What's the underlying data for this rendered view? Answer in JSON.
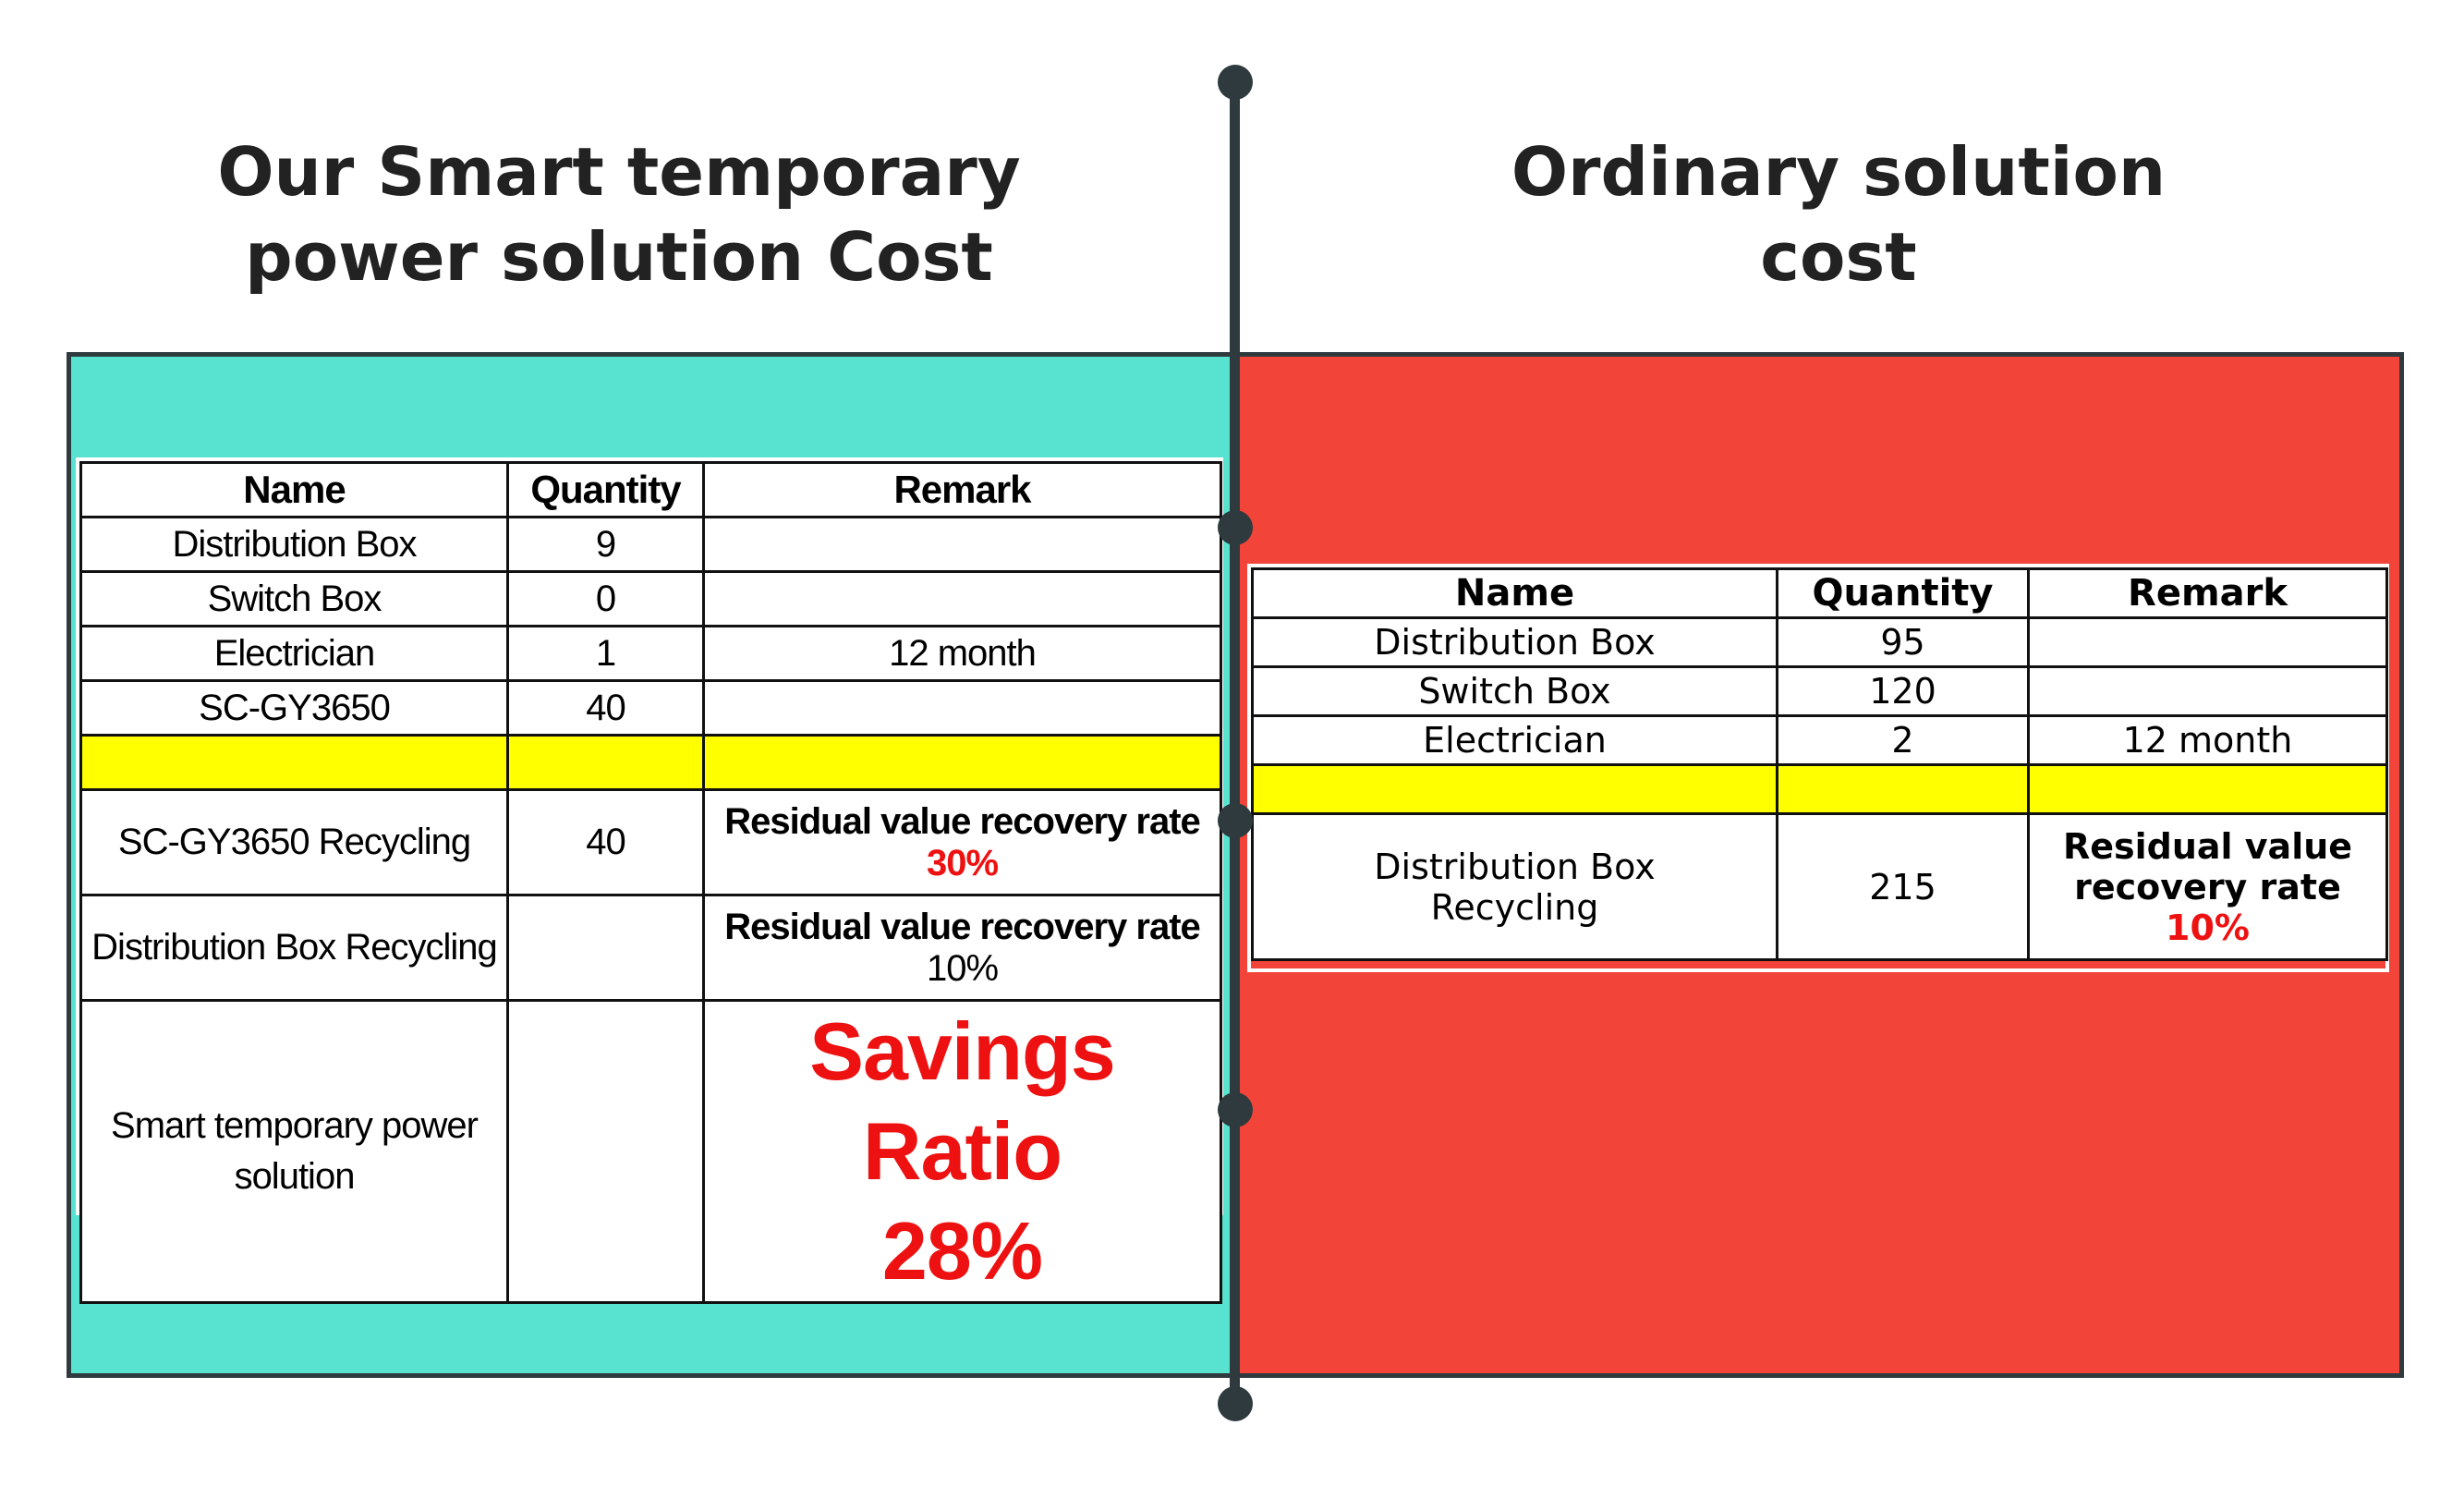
{
  "left": {
    "heading_line1": "Our Smart temporary",
    "heading_line2": "power solution Cost",
    "panel_color": "#57e3d0",
    "table": {
      "headers": [
        "Name",
        "Quantity",
        "Remark"
      ],
      "rows": [
        {
          "name": "Distribution Box",
          "quantity": "9",
          "remark": ""
        },
        {
          "name": "Switch Box",
          "quantity": "0",
          "remark": ""
        },
        {
          "name": "Electrician",
          "quantity": "1",
          "remark": "12 month"
        },
        {
          "name": "SC-GY3650",
          "quantity": "40",
          "remark": ""
        }
      ],
      "recycling_rows": [
        {
          "name": "SC-GY3650 Recycling",
          "quantity": "40",
          "remark_label": "Residual value recovery rate",
          "remark_value": "30%"
        },
        {
          "name": "Distribution Box Recycling",
          "quantity": "",
          "remark_label": "Residual value recovery rate",
          "remark_value": "10%"
        }
      ],
      "summary": {
        "name_line1": "Smart temporary power",
        "name_line2": "solution",
        "quantity": "",
        "savings_label": "Savings Ratio",
        "savings_value": "28%"
      }
    }
  },
  "right": {
    "heading_line1": "Ordinary solution",
    "heading_line2": "cost",
    "panel_color": "#f24438",
    "table": {
      "headers": [
        "Name",
        "Quantity",
        "Remark"
      ],
      "rows": [
        {
          "name": "Distribution Box",
          "quantity": "95",
          "remark": ""
        },
        {
          "name": "Switch Box",
          "quantity": "120",
          "remark": ""
        },
        {
          "name": "Electrician",
          "quantity": "2",
          "remark": "12 month"
        }
      ],
      "recycling_row": {
        "name_line1": "Distribution Box",
        "name_line2": "Recycling",
        "quantity": "215",
        "remark_line1": "Residual value",
        "remark_line2": "recovery rate",
        "remark_value": "10%"
      }
    }
  },
  "colors": {
    "highlight": "#ffff00",
    "accent_red": "#ee1111",
    "divider": "#2f3a3e"
  }
}
